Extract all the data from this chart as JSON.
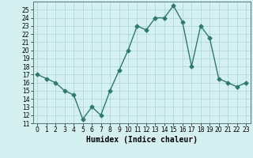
{
  "xlabel": "Humidex (Indice chaleur)",
  "x": [
    0,
    1,
    2,
    3,
    4,
    5,
    6,
    7,
    8,
    9,
    10,
    11,
    12,
    13,
    14,
    15,
    16,
    17,
    18,
    19,
    20,
    21,
    22,
    23
  ],
  "y": [
    17,
    16.5,
    16,
    15,
    14.5,
    11.5,
    13,
    12,
    15,
    17.5,
    20,
    23,
    22.5,
    24,
    24,
    25.5,
    23.5,
    18,
    23,
    21.5,
    16.5,
    16,
    15.5,
    16
  ],
  "line_color": "#2e7b6e",
  "marker": "D",
  "marker_size": 2.5,
  "background_color": "#d4f0f0",
  "grid_color": "#aad4d4",
  "ylim": [
    11,
    26
  ],
  "xlim": [
    -0.5,
    23.5
  ],
  "yticks": [
    11,
    12,
    13,
    14,
    15,
    16,
    17,
    18,
    19,
    20,
    21,
    22,
    23,
    24,
    25
  ],
  "xticks": [
    0,
    1,
    2,
    3,
    4,
    5,
    6,
    7,
    8,
    9,
    10,
    11,
    12,
    13,
    14,
    15,
    16,
    17,
    18,
    19,
    20,
    21,
    22,
    23
  ],
  "tick_fontsize": 5.5,
  "label_fontsize": 7,
  "line_width": 1.0
}
